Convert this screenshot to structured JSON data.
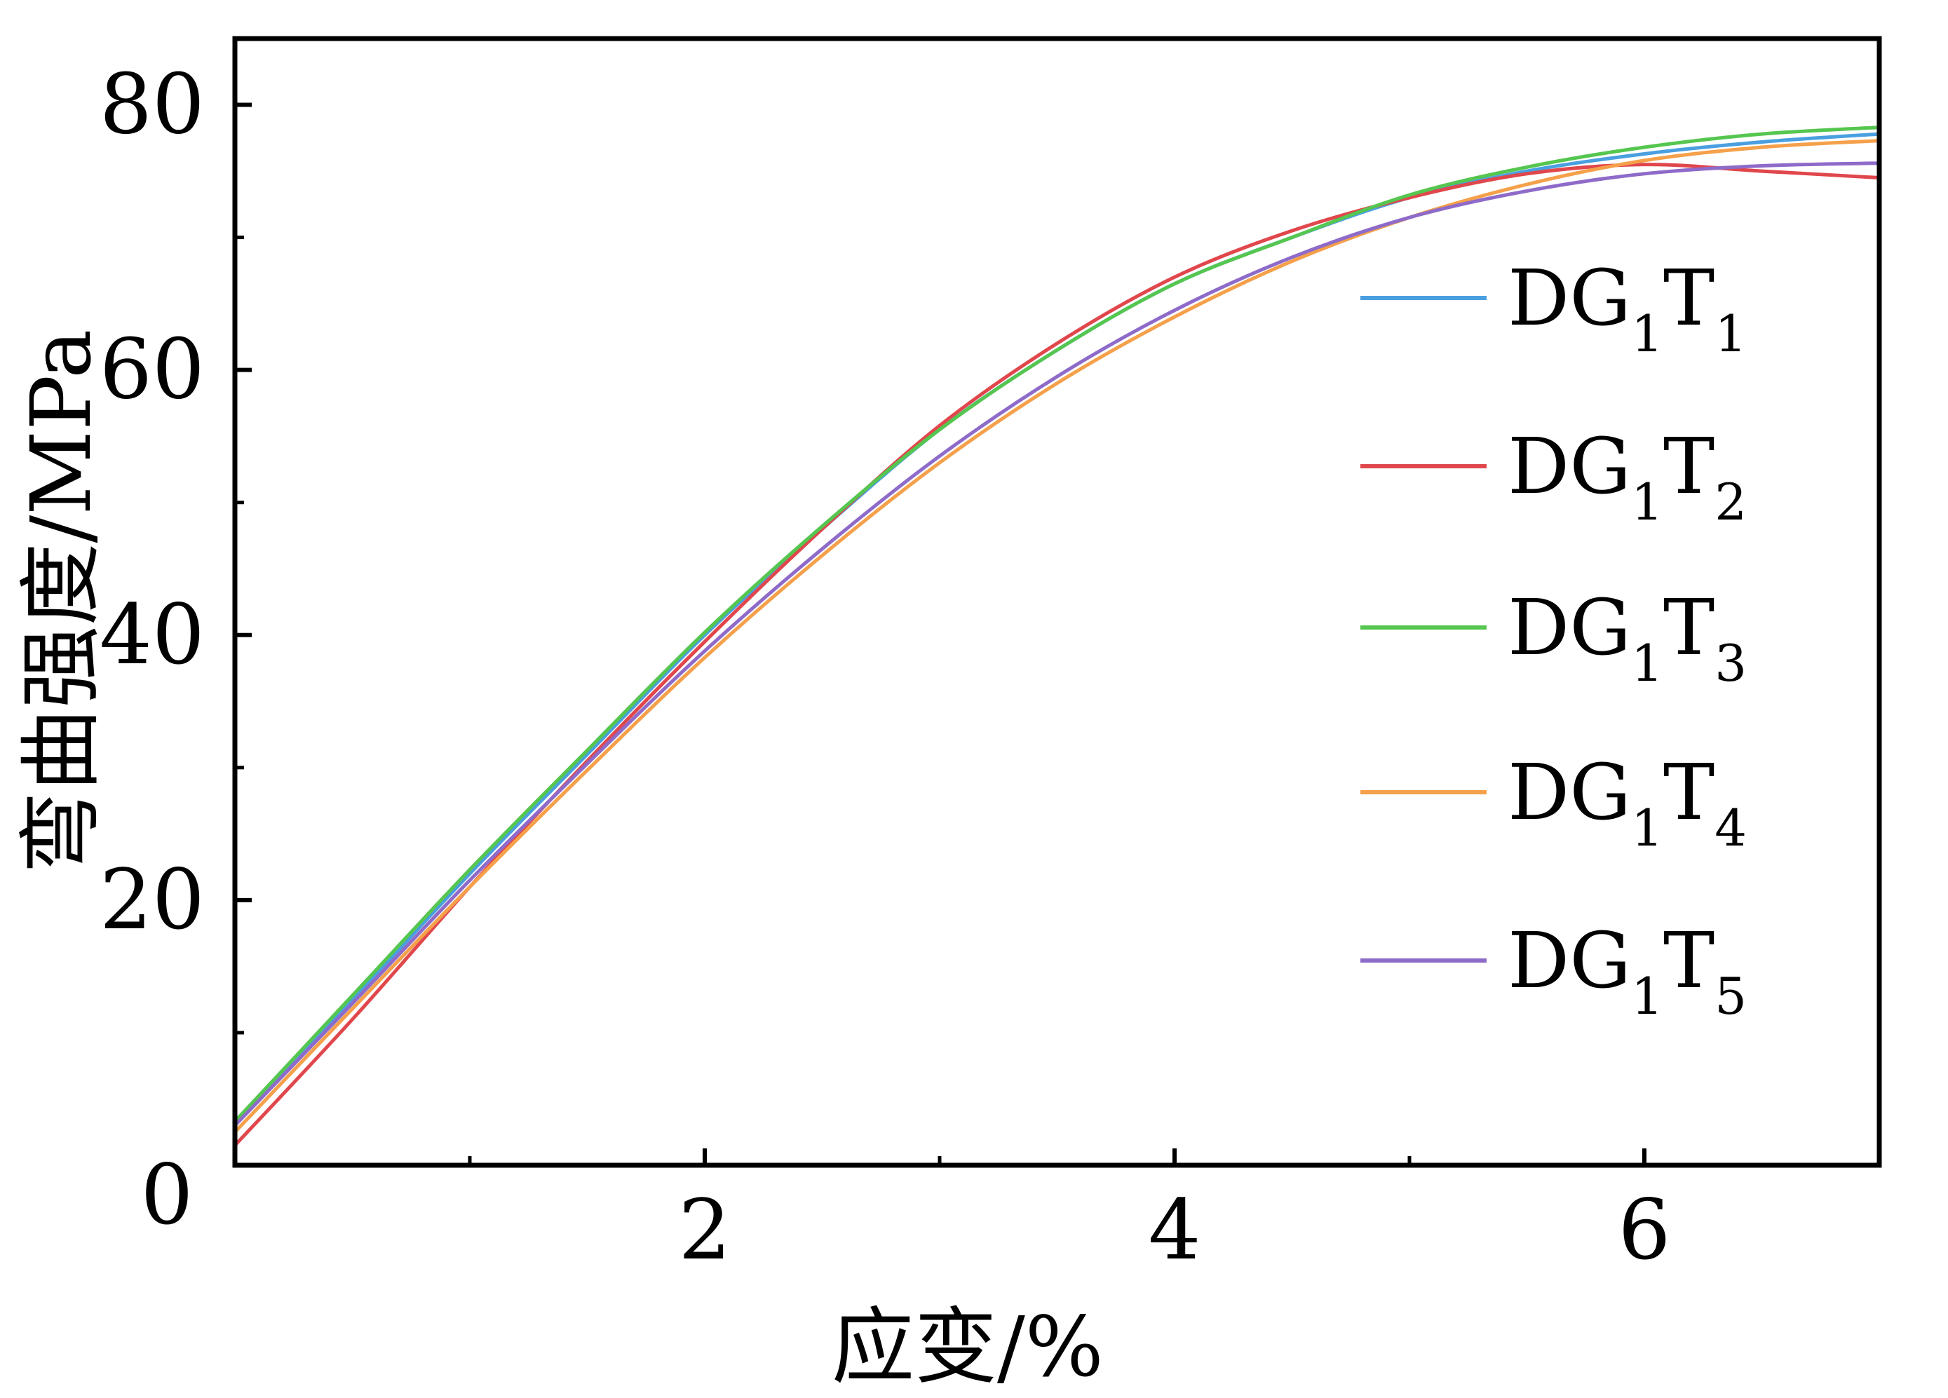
{
  "chart_data": {
    "type": "line",
    "xlabel": "应变/%",
    "ylabel": "弯曲强度/MPa",
    "xlim": [
      0,
      7
    ],
    "ylim": [
      0,
      85
    ],
    "xticks": [
      2,
      4,
      6
    ],
    "yticks": [
      0,
      20,
      40,
      60,
      80
    ],
    "x_minor_ticks": [
      1,
      3,
      5
    ],
    "y_minor_ticks": [
      10,
      30,
      50,
      70
    ],
    "legend_position": "right",
    "grid": false,
    "series": [
      {
        "name": "DG1T1",
        "label_main": "DG",
        "sub1": "1",
        "label_mid": "T",
        "sub2": "1",
        "color": "#4a9fe0",
        "x": [
          0,
          0.5,
          1.0,
          1.5,
          2.0,
          2.5,
          3.0,
          3.5,
          4.0,
          4.5,
          5.0,
          5.5,
          6.0,
          6.5,
          7.0
        ],
        "y": [
          3.2,
          12.5,
          22.0,
          31.0,
          40.0,
          48.0,
          55.5,
          61.5,
          66.5,
          70.0,
          73.0,
          75.0,
          76.3,
          77.2,
          77.8
        ]
      },
      {
        "name": "DG1T2",
        "label_main": "DG",
        "sub1": "1",
        "label_mid": "T",
        "sub2": "2",
        "color": "#e0474c",
        "x": [
          0,
          0.5,
          1.0,
          1.5,
          2.0,
          2.5,
          3.0,
          3.5,
          4.0,
          4.5,
          5.0,
          5.5,
          6.0,
          6.5,
          7.0
        ],
        "y": [
          1.5,
          11.0,
          21.0,
          30.5,
          39.5,
          48.0,
          55.8,
          62.0,
          67.0,
          70.5,
          73.0,
          74.8,
          75.5,
          75.0,
          74.5
        ]
      },
      {
        "name": "DG1T3",
        "label_main": "DG",
        "sub1": "1",
        "label_mid": "T",
        "sub2": "3",
        "color": "#55c64f",
        "x": [
          0,
          0.5,
          1.0,
          1.5,
          2.0,
          2.5,
          3.0,
          3.5,
          4.0,
          4.5,
          5.0,
          5.5,
          6.0,
          6.5,
          7.0
        ],
        "y": [
          3.3,
          12.8,
          22.3,
          31.3,
          40.2,
          48.2,
          55.5,
          61.5,
          66.5,
          70.0,
          73.2,
          75.3,
          76.8,
          77.8,
          78.3
        ]
      },
      {
        "name": "DG1T4",
        "label_main": "DG",
        "sub1": "1",
        "label_mid": "T",
        "sub2": "4",
        "color": "#f5a04a",
        "x": [
          0,
          0.5,
          1.0,
          1.5,
          2.0,
          2.5,
          3.0,
          3.5,
          4.0,
          4.5,
          5.0,
          5.5,
          6.0,
          6.5,
          7.0
        ],
        "y": [
          2.5,
          11.8,
          21.0,
          29.8,
          38.3,
          46.0,
          53.0,
          59.0,
          64.0,
          68.2,
          71.5,
          74.0,
          75.8,
          76.8,
          77.3
        ]
      },
      {
        "name": "DG1T5",
        "label_main": "DG",
        "sub1": "1",
        "label_mid": "T",
        "sub2": "5",
        "color": "#8e6bc9",
        "x": [
          0,
          0.5,
          1.0,
          1.5,
          2.0,
          2.5,
          3.0,
          3.5,
          4.0,
          4.5,
          5.0,
          5.5,
          6.0,
          6.5,
          7.0
        ],
        "y": [
          3.0,
          12.2,
          21.5,
          30.3,
          38.8,
          46.5,
          53.5,
          59.5,
          64.5,
          68.5,
          71.5,
          73.5,
          74.8,
          75.4,
          75.6
        ]
      }
    ]
  }
}
